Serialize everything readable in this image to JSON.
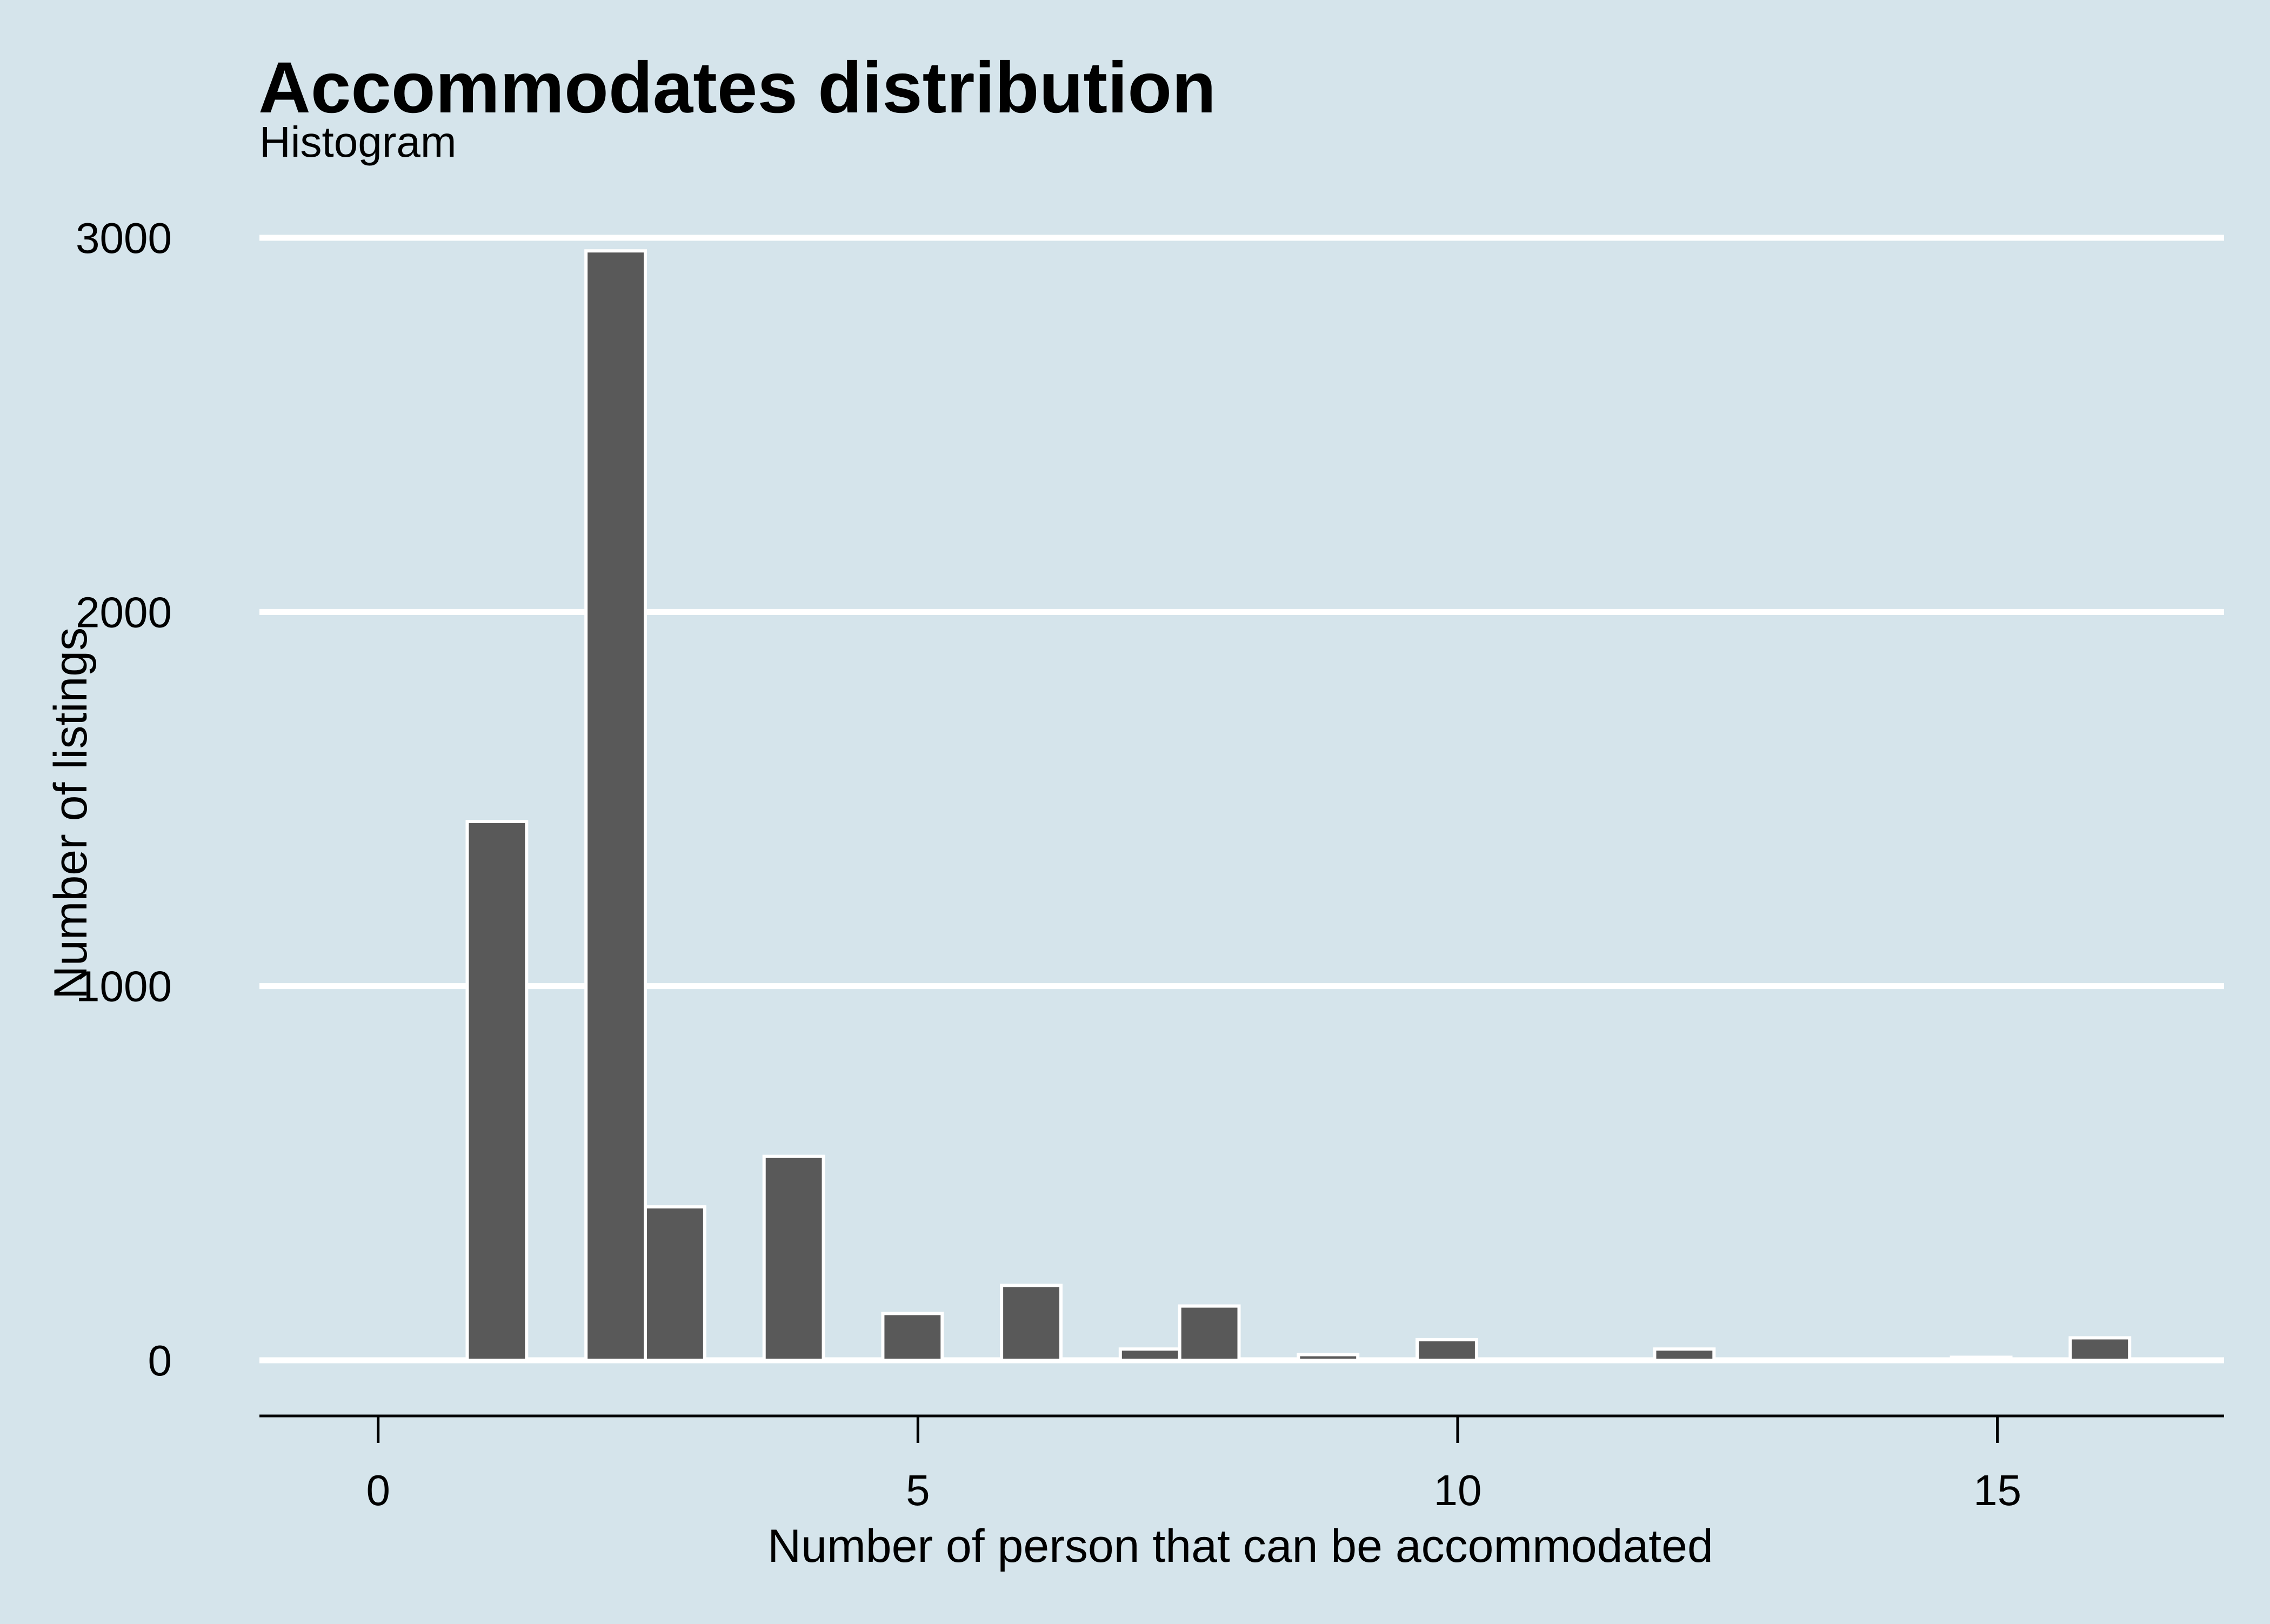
{
  "chart_data": {
    "type": "bar",
    "title": "Accommodates distribution",
    "subtitle": "Histogram",
    "xlabel": "Number of person that can be accommodated",
    "ylabel": "Number of listings",
    "x_ticks": [
      0,
      5,
      10,
      15
    ],
    "y_ticks": [
      0,
      1000,
      2000,
      3000
    ],
    "xlim": [
      -1.1,
      17.1
    ],
    "ylim": [
      -150,
      3030
    ],
    "bin_width": 0.55,
    "x": [
      1.1,
      2.2,
      2.75,
      3.85,
      4.95,
      6.05,
      7.15,
      7.7,
      8.8,
      9.9,
      11.0,
      12.1,
      13.2,
      14.85,
      15.95
    ],
    "values": [
      1440,
      2965,
      410,
      545,
      125,
      200,
      30,
      145,
      15,
      55,
      3,
      30,
      2,
      8,
      60
    ],
    "grid": {
      "horizontal": true,
      "vertical": false
    },
    "legend": "none",
    "colors": {
      "background": "#d5e4eb",
      "bar_fill": "#595959",
      "bar_edge": "#ffffff",
      "grid": "#ffffff",
      "axis": "#000000"
    }
  }
}
